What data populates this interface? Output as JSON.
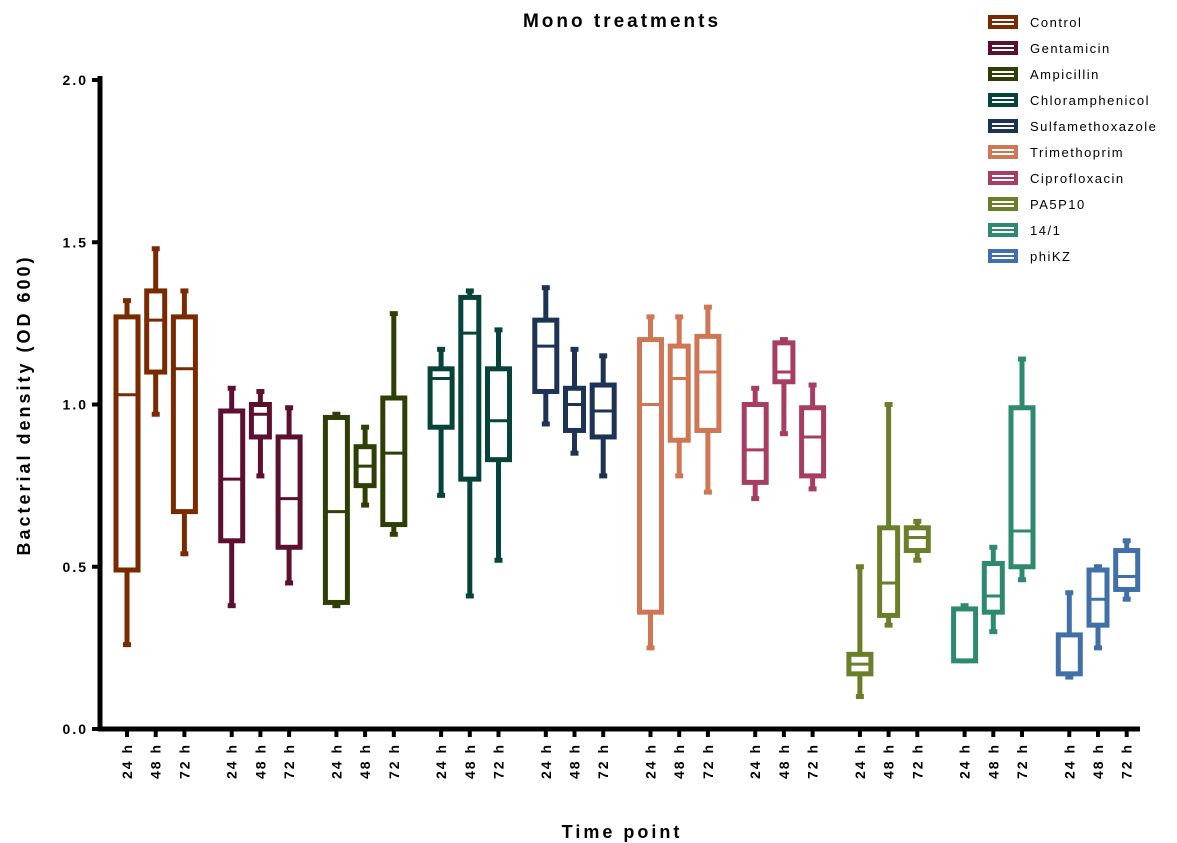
{
  "chart_data": {
    "type": "box",
    "title": "Mono treatments",
    "xlabel": "Time point",
    "ylabel": "Bacterial density (OD 600)",
    "ylim": [
      0,
      2
    ],
    "yticks": [
      "0.0",
      "0.5",
      "1.0",
      "1.5",
      "2.0"
    ],
    "timepoints": [
      "24 h",
      "48 h",
      "72 h"
    ],
    "legend_position": "top-right",
    "series": [
      {
        "name": "Control",
        "color": "#7a2a00",
        "boxes": [
          {
            "min": 0.26,
            "q1": 0.49,
            "median": 1.03,
            "q3": 1.27,
            "max": 1.32
          },
          {
            "min": 0.97,
            "q1": 1.1,
            "median": 1.26,
            "q3": 1.35,
            "max": 1.48
          },
          {
            "min": 0.54,
            "q1": 0.67,
            "median": 1.11,
            "q3": 1.27,
            "max": 1.35
          }
        ]
      },
      {
        "name": "Gentamicin",
        "color": "#5c0f30",
        "boxes": [
          {
            "min": 0.38,
            "q1": 0.58,
            "median": 0.77,
            "q3": 0.98,
            "max": 1.05
          },
          {
            "min": 0.78,
            "q1": 0.9,
            "median": 0.97,
            "q3": 1.0,
            "max": 1.04
          },
          {
            "min": 0.45,
            "q1": 0.56,
            "median": 0.71,
            "q3": 0.9,
            "max": 0.99
          }
        ]
      },
      {
        "name": "Ampicillin",
        "color": "#2e3f05",
        "boxes": [
          {
            "min": 0.38,
            "q1": 0.39,
            "median": 0.67,
            "q3": 0.96,
            "max": 0.97
          },
          {
            "min": 0.69,
            "q1": 0.75,
            "median": 0.81,
            "q3": 0.87,
            "max": 0.93
          },
          {
            "min": 0.6,
            "q1": 0.63,
            "median": 0.85,
            "q3": 1.02,
            "max": 1.28
          }
        ]
      },
      {
        "name": "Chloramphenicol",
        "color": "#06433a",
        "boxes": [
          {
            "min": 0.72,
            "q1": 0.93,
            "median": 1.08,
            "q3": 1.11,
            "max": 1.17
          },
          {
            "min": 0.41,
            "q1": 0.77,
            "median": 1.22,
            "q3": 1.33,
            "max": 1.35
          },
          {
            "min": 0.52,
            "q1": 0.83,
            "median": 0.95,
            "q3": 1.11,
            "max": 1.23
          }
        ]
      },
      {
        "name": "Sulfamethoxazole",
        "color": "#1c3356",
        "boxes": [
          {
            "min": 0.94,
            "q1": 1.04,
            "median": 1.18,
            "q3": 1.26,
            "max": 1.36
          },
          {
            "min": 0.85,
            "q1": 0.92,
            "median": 1.0,
            "q3": 1.05,
            "max": 1.17
          },
          {
            "min": 0.78,
            "q1": 0.9,
            "median": 0.98,
            "q3": 1.06,
            "max": 1.15
          }
        ]
      },
      {
        "name": "Trimethoprim",
        "color": "#cf7654",
        "boxes": [
          {
            "min": 0.25,
            "q1": 0.36,
            "median": 1.0,
            "q3": 1.2,
            "max": 1.27
          },
          {
            "min": 0.78,
            "q1": 0.89,
            "median": 1.08,
            "q3": 1.18,
            "max": 1.27
          },
          {
            "min": 0.73,
            "q1": 0.92,
            "median": 1.1,
            "q3": 1.21,
            "max": 1.3
          }
        ]
      },
      {
        "name": "Ciprofloxacin",
        "color": "#a83d63",
        "boxes": [
          {
            "min": 0.71,
            "q1": 0.76,
            "median": 0.86,
            "q3": 1.0,
            "max": 1.05
          },
          {
            "min": 0.91,
            "q1": 1.07,
            "median": 1.1,
            "q3": 1.19,
            "max": 1.2
          },
          {
            "min": 0.74,
            "q1": 0.78,
            "median": 0.9,
            "q3": 0.99,
            "max": 1.06
          }
        ]
      },
      {
        "name": "PA5P10",
        "color": "#6b7e2a",
        "boxes": [
          {
            "min": 0.1,
            "q1": 0.17,
            "median": 0.2,
            "q3": 0.23,
            "max": 0.5
          },
          {
            "min": 0.32,
            "q1": 0.35,
            "median": 0.45,
            "q3": 0.62,
            "max": 1.0
          },
          {
            "min": 0.52,
            "q1": 0.55,
            "median": 0.59,
            "q3": 0.62,
            "max": 0.64
          }
        ]
      },
      {
        "name": "14/1",
        "color": "#2d8a70",
        "boxes": [
          {
            "min": 0.21,
            "q1": 0.21,
            "median": 0.21,
            "q3": 0.37,
            "max": 0.38
          },
          {
            "min": 0.3,
            "q1": 0.36,
            "median": 0.41,
            "q3": 0.51,
            "max": 0.56
          },
          {
            "min": 0.46,
            "q1": 0.5,
            "median": 0.61,
            "q3": 0.99,
            "max": 1.14
          }
        ]
      },
      {
        "name": "phiKZ",
        "color": "#4170a8",
        "boxes": [
          {
            "min": 0.16,
            "q1": 0.17,
            "median": 0.17,
            "q3": 0.29,
            "max": 0.42
          },
          {
            "min": 0.25,
            "q1": 0.32,
            "median": 0.4,
            "q3": 0.49,
            "max": 0.5
          },
          {
            "min": 0.4,
            "q1": 0.43,
            "median": 0.47,
            "q3": 0.55,
            "max": 0.58
          }
        ]
      }
    ]
  }
}
